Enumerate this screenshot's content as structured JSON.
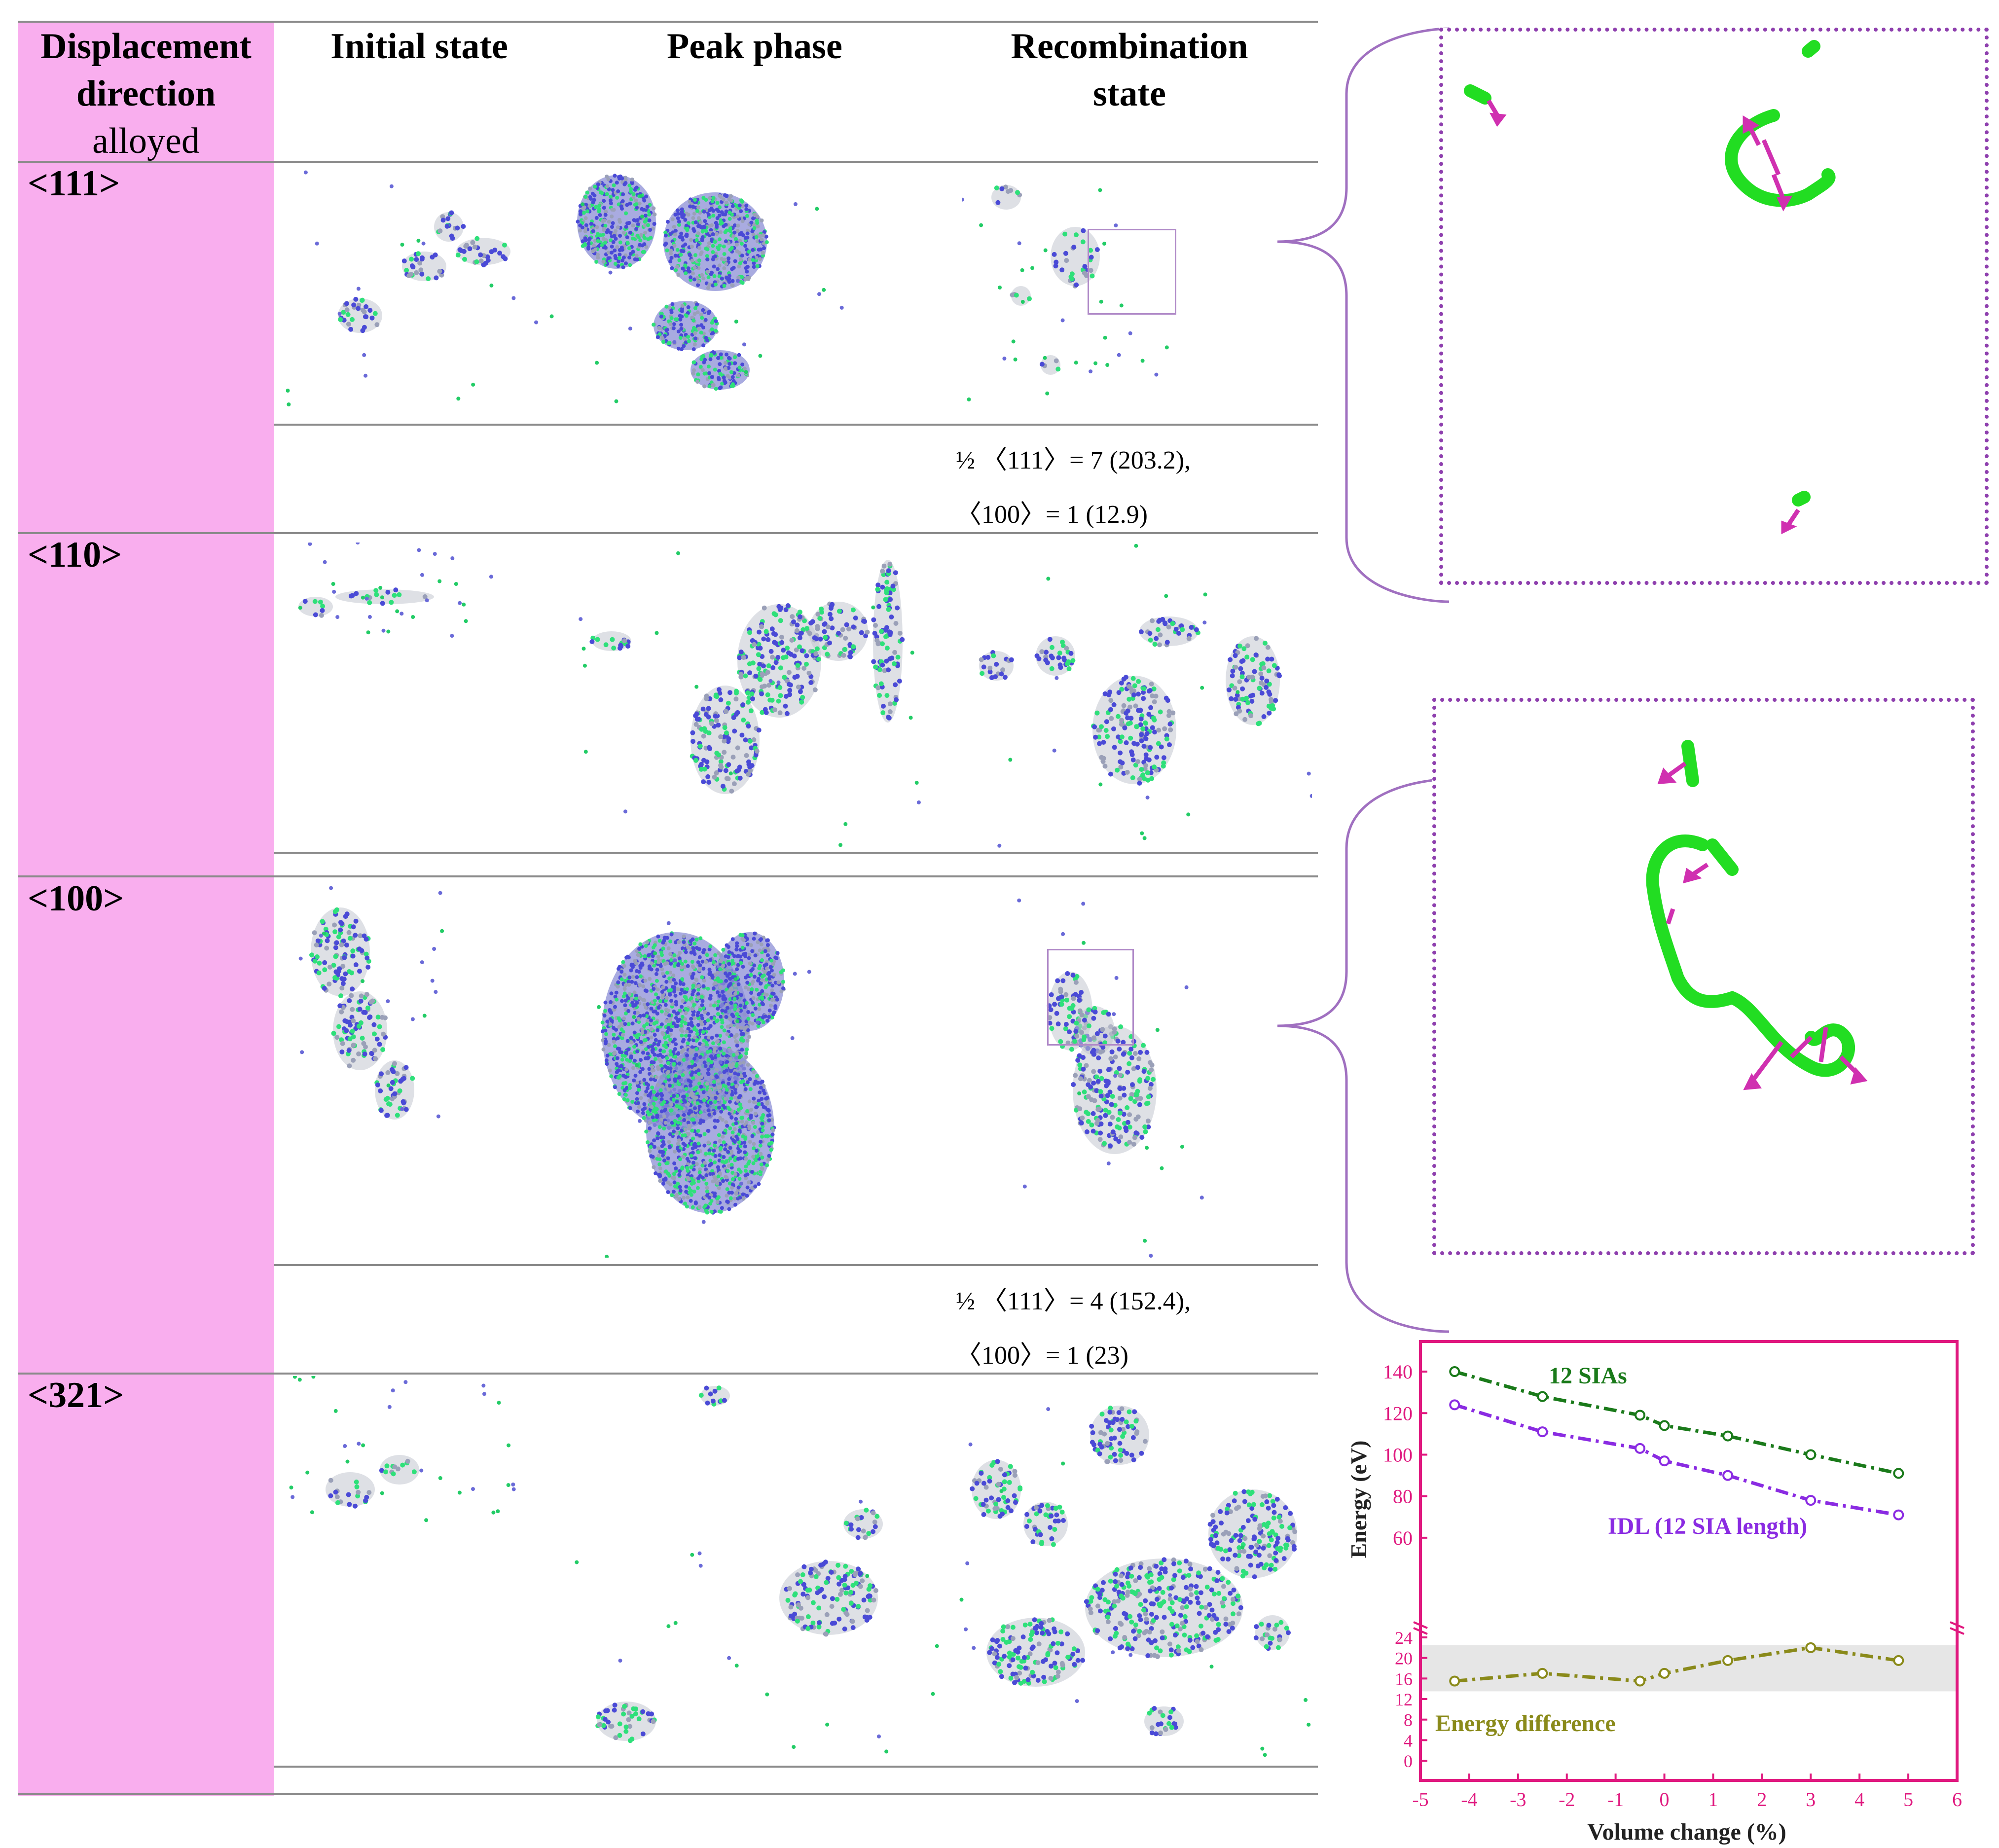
{
  "table": {
    "headers": {
      "direction_line1": "Displacement",
      "direction_line2": "direction",
      "direction_line3": "alloyed",
      "initial": "Initial state",
      "peak": "Peak phase",
      "recombination_line1": "Recombination",
      "recombination_line2": "state"
    },
    "rows": [
      {
        "label": "<111>",
        "burgers_line1": "½ 〈111〉= 7 (203.2),",
        "burgers_line2": "〈100〉= 1 (12.9)"
      },
      {
        "label": "<110>"
      },
      {
        "label": "<100>",
        "burgers_line1": "½ 〈111〉= 4 (152.4),",
        "burgers_line2": "〈100〉= 1 (23)"
      },
      {
        "label": "<321>"
      }
    ]
  },
  "colors": {
    "pink_column": "#f9aeee",
    "loop_green": "#22dd22",
    "arrow_magenta": "#d030b0",
    "bracket_purple": "#a070c0",
    "zoom_border": "#8e3fae",
    "chart_frame": "#e0197f",
    "series_sias": "#1a7a1a",
    "series_idl": "#8a2be2",
    "series_diff": "#8a8a1a"
  },
  "chart_data": {
    "type": "line",
    "xlabel": "Volume change (%)",
    "ylabel": "Energy (eV)",
    "xlim": [
      -5,
      6
    ],
    "x_ticks": [
      "-5",
      "-4",
      "-3",
      "-2",
      "-1",
      "0",
      "1",
      "2",
      "3",
      "4",
      "5",
      "6"
    ],
    "upper_axis": {
      "ylim": [
        50,
        145
      ],
      "y_ticks": [
        "60",
        "80",
        "100",
        "120",
        "140"
      ]
    },
    "lower_axis": {
      "ylim": [
        0,
        24
      ],
      "y_ticks": [
        "0",
        "4",
        "8",
        "12",
        "16",
        "20",
        "24"
      ],
      "band": [
        13.5,
        22.5
      ]
    },
    "series": [
      {
        "name": "12 SIAs",
        "axis": "upper",
        "x": [
          -4.3,
          -2.5,
          -0.5,
          0,
          1.3,
          3,
          4.8
        ],
        "values": [
          140,
          128,
          119,
          114,
          109,
          100,
          91
        ]
      },
      {
        "name": "IDL (12 SIA length)",
        "axis": "upper",
        "x": [
          -4.3,
          -2.5,
          -0.5,
          0,
          1.3,
          3,
          4.8
        ],
        "values": [
          124,
          111,
          103,
          97,
          90,
          78,
          71
        ]
      },
      {
        "name": "Energy difference",
        "axis": "lower",
        "x": [
          -4.3,
          -2.5,
          -0.5,
          0,
          1.3,
          3,
          4.8
        ],
        "values": [
          15.5,
          17,
          15.5,
          17,
          19.5,
          22,
          19.5
        ]
      }
    ]
  }
}
